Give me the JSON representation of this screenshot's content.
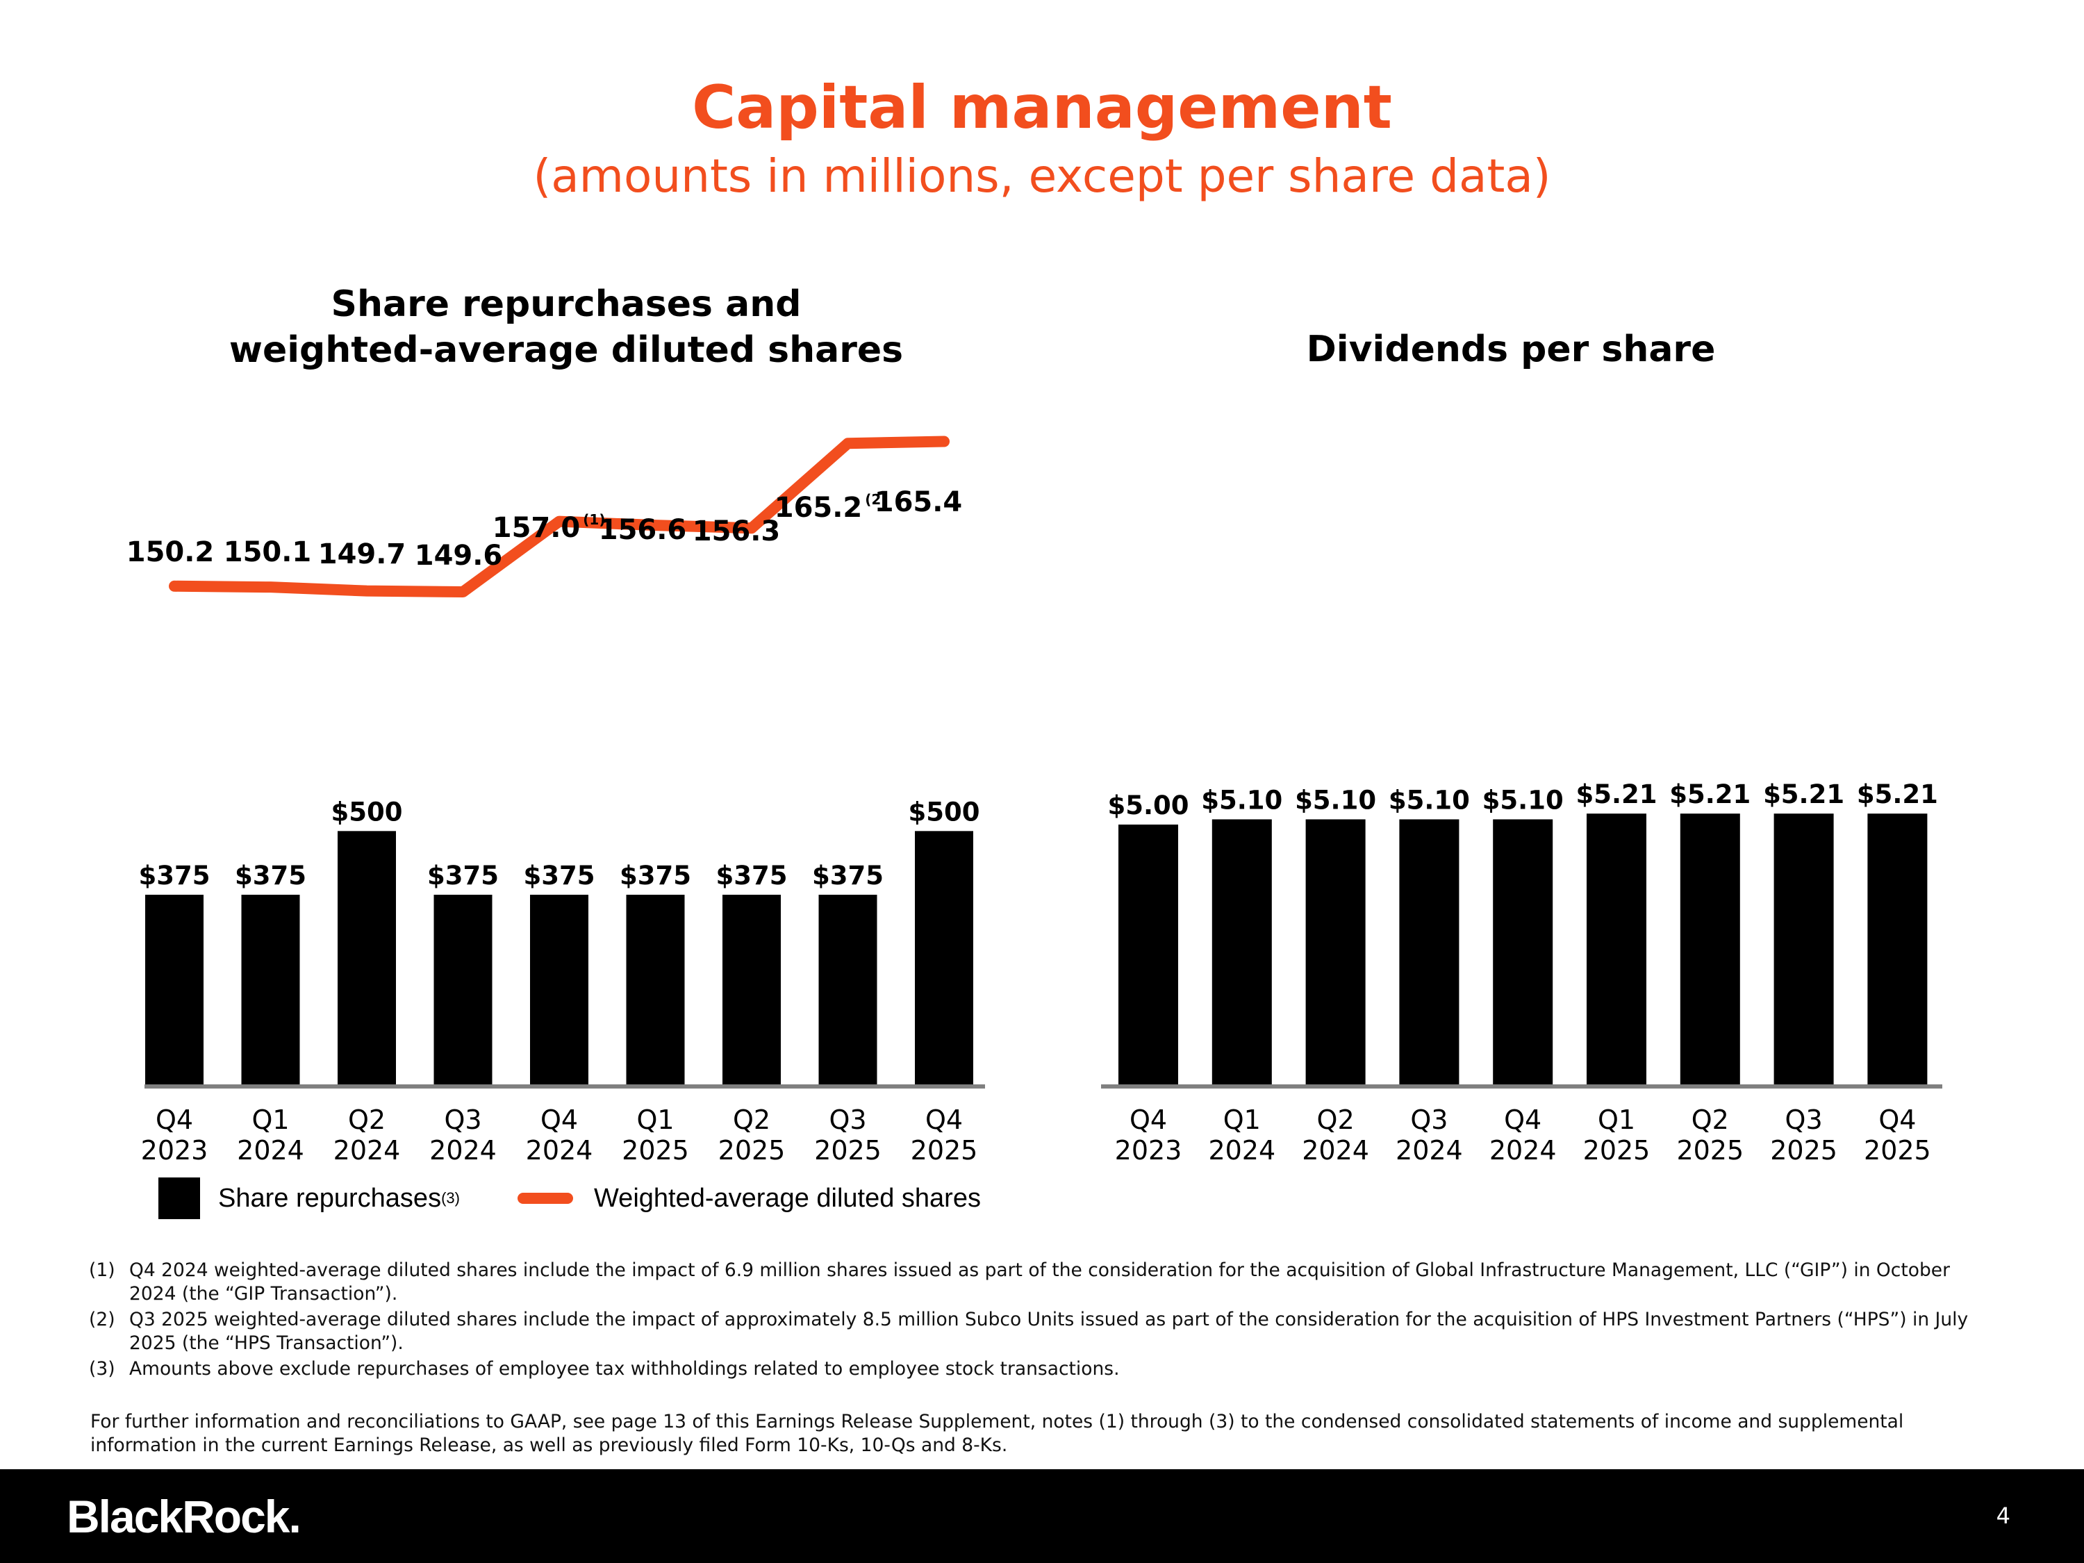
{
  "header": {
    "title": "Capital management",
    "subtitle": "(amounts in millions, except per share data)"
  },
  "chart_data": [
    {
      "type": "bar",
      "title": "Share repurchases and weighted-average diluted shares",
      "title_lines": [
        "Share repurchases and",
        "weighted-average diluted shares"
      ],
      "categories": [
        [
          "Q4",
          "2023"
        ],
        [
          "Q1",
          "2024"
        ],
        [
          "Q2",
          "2024"
        ],
        [
          "Q3",
          "2024"
        ],
        [
          "Q4",
          "2024"
        ],
        [
          "Q1",
          "2025"
        ],
        [
          "Q2",
          "2025"
        ],
        [
          "Q3",
          "2025"
        ],
        [
          "Q4",
          "2025"
        ]
      ],
      "series": [
        {
          "name": "Share repurchases",
          "name_note": "(3)",
          "type": "bar",
          "color": "#000000",
          "values": [
            375,
            375,
            500,
            375,
            375,
            375,
            375,
            375,
            500
          ],
          "labels": [
            "$375",
            "$375",
            "$500",
            "$375",
            "$375",
            "$375",
            "$375",
            "$375",
            "$500"
          ]
        },
        {
          "name": "Weighted-average diluted shares",
          "type": "line",
          "color": "#f24e1e",
          "values": [
            150.2,
            150.1,
            149.7,
            149.6,
            157.0,
            156.6,
            156.3,
            165.2,
            165.4
          ],
          "labels": [
            "150.2",
            "150.1",
            "149.7",
            "149.6",
            "157.0",
            "156.6",
            "156.3",
            "165.2",
            "165.4"
          ],
          "notes": [
            "",
            "",
            "",
            "",
            "(1)",
            "",
            "",
            "(2)",
            ""
          ]
        }
      ],
      "ylim": [
        0,
        1200
      ]
    },
    {
      "type": "bar",
      "title": "Dividends per share",
      "categories": [
        [
          "Q4",
          "2023"
        ],
        [
          "Q1",
          "2024"
        ],
        [
          "Q2",
          "2024"
        ],
        [
          "Q3",
          "2024"
        ],
        [
          "Q4",
          "2024"
        ],
        [
          "Q1",
          "2025"
        ],
        [
          "Q2",
          "2025"
        ],
        [
          "Q3",
          "2025"
        ],
        [
          "Q4",
          "2025"
        ]
      ],
      "series": [
        {
          "name": "Dividends per share",
          "color": "#000000",
          "values": [
            5.0,
            5.1,
            5.1,
            5.1,
            5.1,
            5.21,
            5.21,
            5.21,
            5.21
          ],
          "labels": [
            "$5.00",
            "$5.10",
            "$5.10",
            "$5.10",
            "$5.10",
            "$5.21",
            "$5.21",
            "$5.21",
            "$5.21"
          ]
        }
      ],
      "ylim": [
        0,
        8.5
      ]
    }
  ],
  "footnotes": [
    {
      "num": "(1)",
      "text": "Q4 2024 weighted-average diluted shares include the impact of 6.9 million shares issued as part of the consideration for the acquisition of Global Infrastructure Management, LLC (“GIP”) in October 2024 (the “GIP Transaction”)."
    },
    {
      "num": "(2)",
      "text": "Q3 2025 weighted-average diluted shares include the impact of approximately 8.5 million Subco Units issued as part of the consideration for the acquisition of HPS Investment Partners (“HPS”) in July 2025 (the “HPS Transaction”)."
    },
    {
      "num": "(3)",
      "text": "Amounts above exclude repurchases of employee tax withholdings related to employee stock transactions."
    }
  ],
  "further_info": "For further information and reconciliations to GAAP, see page 13 of this Earnings Release Supplement, notes (1) through (3) to the condensed consolidated statements of income and supplemental information in the current Earnings Release, as well as previously filed Form 10-Ks, 10-Qs and 8-Ks.",
  "footer": {
    "logo": "BlackRock.",
    "page_number": "4"
  }
}
